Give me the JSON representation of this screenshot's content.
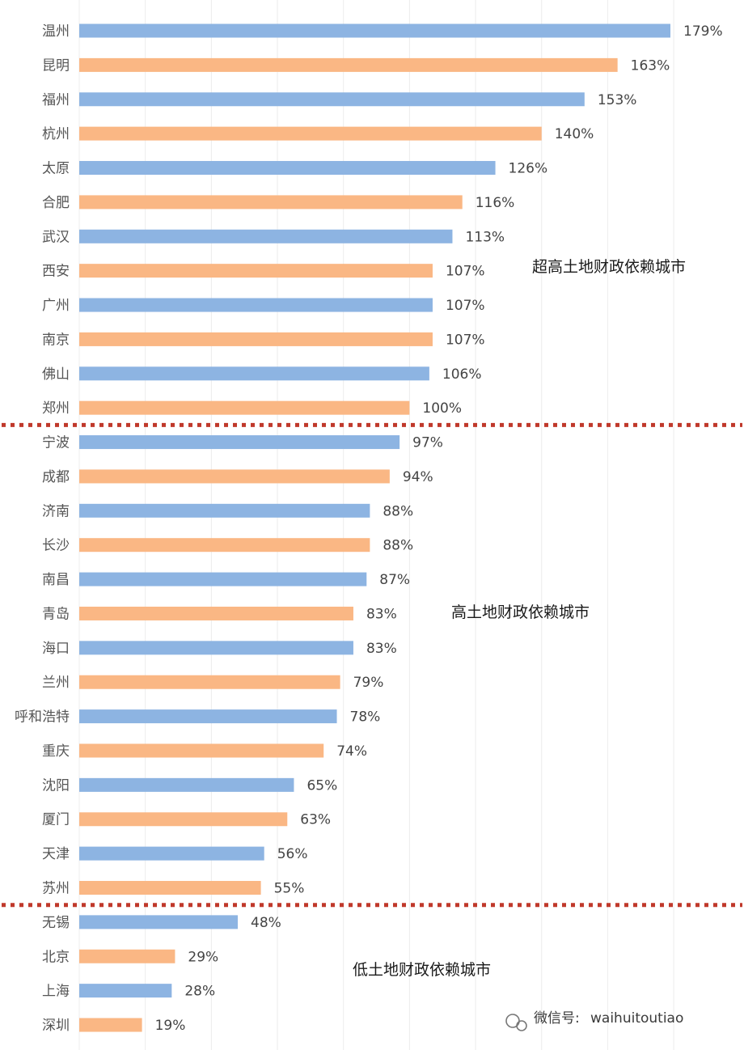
{
  "chart_data": {
    "type": "bar",
    "orientation": "horizontal",
    "unit": "%",
    "categories": [
      "温州",
      "昆明",
      "福州",
      "杭州",
      "太原",
      "合肥",
      "武汉",
      "西安",
      "广州",
      "南京",
      "佛山",
      "郑州",
      "宁波",
      "成都",
      "济南",
      "长沙",
      "南昌",
      "青岛",
      "海口",
      "兰州",
      "呼和浩特",
      "重庆",
      "沈阳",
      "厦门",
      "天津",
      "苏州",
      "无锡",
      "北京",
      "上海",
      "深圳"
    ],
    "values": [
      179,
      163,
      153,
      140,
      126,
      116,
      113,
      107,
      107,
      107,
      106,
      100,
      97,
      94,
      88,
      88,
      87,
      83,
      83,
      79,
      78,
      74,
      65,
      63,
      56,
      55,
      48,
      29,
      28,
      19
    ],
    "value_labels": [
      "179%",
      "163%",
      "153%",
      "140%",
      "126%",
      "116%",
      "113%",
      "107%",
      "107%",
      "107%",
      "106%",
      "100%",
      "97%",
      "94%",
      "88%",
      "88%",
      "87%",
      "83%",
      "83%",
      "79%",
      "78%",
      "74%",
      "65%",
      "63%",
      "56%",
      "55%",
      "48%",
      "29%",
      "28%",
      "19%"
    ],
    "bar_colors": [
      "#8db4e2",
      "#fab784"
    ],
    "xlim": [
      0,
      180
    ],
    "grid": true,
    "groups": [
      {
        "label": "超高土地财政依赖城市",
        "first_index": 0,
        "last_index": 11
      },
      {
        "label": "高土地财政依赖城市",
        "first_index": 12,
        "last_index": 25
      },
      {
        "label": "低土地财政依赖城市",
        "first_index": 26,
        "last_index": 29
      }
    ],
    "divider_color": "#c0392b"
  },
  "watermark": {
    "prefix": "微信号:",
    "account": "waihuitoutiao",
    "icon": "wechat-icon"
  }
}
